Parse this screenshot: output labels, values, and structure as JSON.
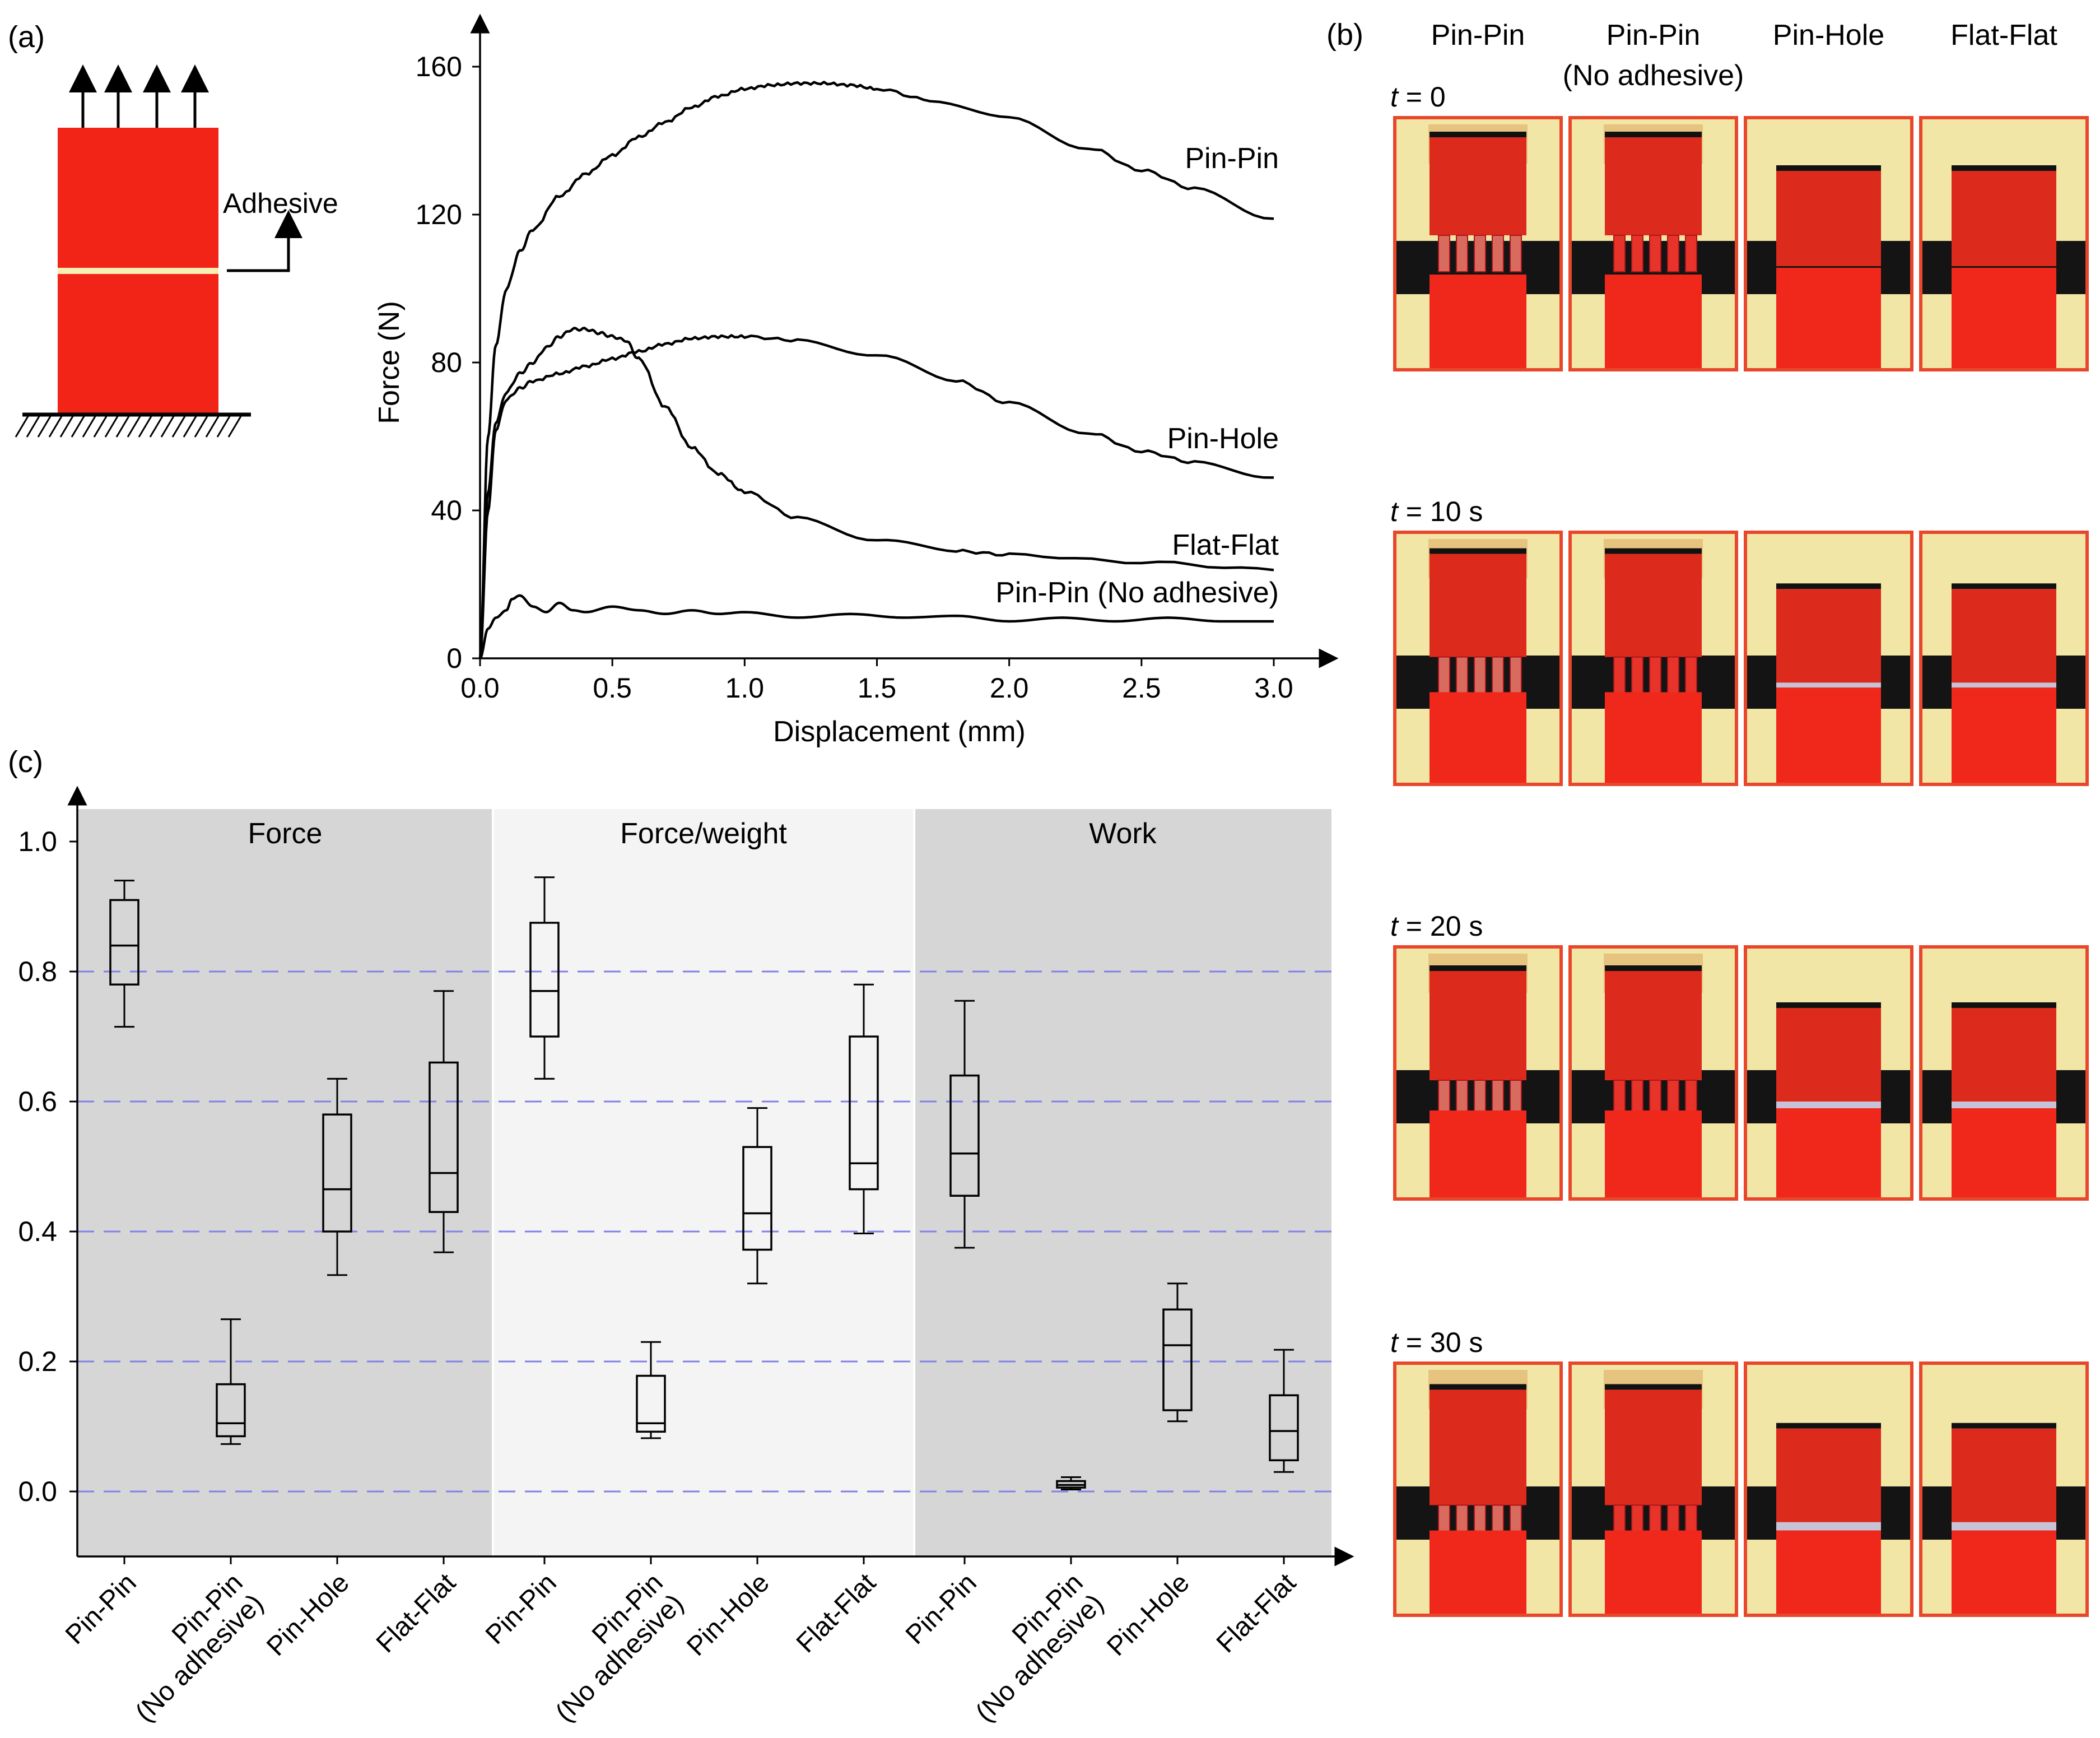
{
  "panel_labels": {
    "a": "(a)",
    "b": "(b)",
    "c": "(c)"
  },
  "schematic": {
    "adhesive_label": "Adhesive"
  },
  "colors": {
    "red": "#f22418",
    "adhesive": "#f7efb3",
    "grid": "#8080e6",
    "panel_dark": "#d6d6d6",
    "panel_light": "#f4f4f4",
    "frame": "#e8472c",
    "fixture": "#f2e6a6",
    "black_band": "#141414"
  },
  "photos": {
    "columns": [
      "Pin-Pin",
      "Pin-Pin\n(No adhesive)",
      "Pin-Hole",
      "Flat-Flat"
    ],
    "times": [
      {
        "t": "t",
        "rest": " = 0"
      },
      {
        "t": "t",
        "rest": " = 10 s"
      },
      {
        "t": "t",
        "rest": " = 20 s"
      },
      {
        "t": "t",
        "rest": " = 30 s"
      }
    ]
  },
  "chart_data": [
    {
      "type": "line",
      "panel": "(a)",
      "xlabel": "Displacement (mm)",
      "ylabel": "Force (N)",
      "xlim": [
        0,
        3.0
      ],
      "ylim": [
        0,
        160
      ],
      "xticks": [
        0,
        0.5,
        1.0,
        1.5,
        2.0,
        2.5,
        3.0
      ],
      "xtick_labels": [
        "0.0",
        "0.5",
        "1.0",
        "1.5",
        "2.0",
        "2.5",
        "3.0"
      ],
      "yticks": [
        0,
        40,
        80,
        120,
        160
      ],
      "ytick_labels": [
        "0",
        "40",
        "80",
        "120",
        "160"
      ],
      "series": [
        {
          "name": "Pin-Pin",
          "x": [
            0,
            0.03,
            0.06,
            0.1,
            0.15,
            0.2,
            0.3,
            0.4,
            0.5,
            0.6,
            0.7,
            0.8,
            0.9,
            1.0,
            1.1,
            1.2,
            1.3,
            1.4,
            1.5,
            1.7,
            2.0,
            2.3,
            2.5,
            2.7,
            3.0
          ],
          "y": [
            0,
            60,
            85,
            100,
            110,
            116,
            125,
            131,
            136,
            141,
            145,
            149,
            152,
            154,
            155,
            155.5,
            155.5,
            155,
            154,
            151,
            146,
            138,
            132,
            127,
            119
          ]
        },
        {
          "name": "Pin-Hole",
          "x": [
            0,
            0.03,
            0.06,
            0.1,
            0.15,
            0.2,
            0.3,
            0.4,
            0.5,
            0.6,
            0.7,
            0.8,
            0.9,
            1.0,
            1.2,
            1.5,
            1.8,
            2.0,
            2.3,
            2.5,
            2.7,
            3.0
          ],
          "y": [
            0,
            40,
            62,
            70,
            73,
            75,
            77,
            79,
            81,
            83,
            85,
            86.5,
            87,
            87,
            86,
            82,
            75,
            69,
            61,
            56,
            53,
            49
          ]
        },
        {
          "name": "Flat-Flat",
          "x": [
            0,
            0.03,
            0.06,
            0.1,
            0.15,
            0.2,
            0.25,
            0.3,
            0.35,
            0.4,
            0.45,
            0.5,
            0.55,
            0.6,
            0.7,
            0.8,
            0.9,
            1.0,
            1.2,
            1.5,
            1.8,
            2.0,
            2.5,
            3.0
          ],
          "y": [
            0,
            45,
            64,
            72,
            77,
            80,
            84,
            87,
            89,
            89,
            88,
            87,
            86,
            81,
            68,
            57,
            50,
            45,
            38,
            32,
            29,
            28,
            26,
            24
          ]
        },
        {
          "name": "Pin-Pin (No adhesive)",
          "x": [
            0,
            0.03,
            0.06,
            0.1,
            0.12,
            0.15,
            0.2,
            0.25,
            0.3,
            0.35,
            0.4,
            0.5,
            0.6,
            0.7,
            0.8,
            0.9,
            1.0,
            1.2,
            1.4,
            1.6,
            1.8,
            2.0,
            2.2,
            2.4,
            2.6,
            2.8,
            3.0
          ],
          "y": [
            0,
            8,
            11,
            13,
            16,
            17,
            14,
            12.5,
            15,
            13,
            12.5,
            14,
            13,
            12,
            13,
            12,
            12.5,
            11,
            12,
            11,
            11.5,
            10,
            11,
            10,
            11,
            10,
            10
          ]
        }
      ]
    },
    {
      "type": "box",
      "panel": "(c)",
      "ylim": [
        -0.1,
        1.05
      ],
      "yticks": [
        0.0,
        0.2,
        0.4,
        0.6,
        0.8,
        1.0
      ],
      "ytick_labels": [
        "0.0",
        "0.2",
        "0.4",
        "0.6",
        "0.8",
        "1.0"
      ],
      "groups": [
        {
          "name": "Force",
          "boxes": [
            {
              "label": "Pin-Pin",
              "min": 0.715,
              "q1": 0.78,
              "median": 0.84,
              "q3": 0.91,
              "max": 0.94
            },
            {
              "label": "Pin-Pin\n(No adhesive)",
              "min": 0.073,
              "q1": 0.085,
              "median": 0.105,
              "q3": 0.165,
              "max": 0.265
            },
            {
              "label": "Pin-Hole",
              "min": 0.333,
              "q1": 0.4,
              "median": 0.465,
              "q3": 0.58,
              "max": 0.635
            },
            {
              "label": "Flat-Flat",
              "min": 0.368,
              "q1": 0.43,
              "median": 0.49,
              "q3": 0.66,
              "max": 0.77
            }
          ]
        },
        {
          "name": "Force/weight",
          "boxes": [
            {
              "label": "Pin-Pin",
              "min": 0.635,
              "q1": 0.7,
              "median": 0.77,
              "q3": 0.875,
              "max": 0.945
            },
            {
              "label": "Pin-Pin\n(No adhesive)",
              "min": 0.082,
              "q1": 0.092,
              "median": 0.105,
              "q3": 0.178,
              "max": 0.23
            },
            {
              "label": "Pin-Hole",
              "min": 0.32,
              "q1": 0.372,
              "median": 0.428,
              "q3": 0.53,
              "max": 0.59
            },
            {
              "label": "Flat-Flat",
              "min": 0.397,
              "q1": 0.465,
              "median": 0.505,
              "q3": 0.7,
              "max": 0.78
            }
          ]
        },
        {
          "name": "Work",
          "boxes": [
            {
              "label": "Pin-Pin",
              "min": 0.375,
              "q1": 0.455,
              "median": 0.52,
              "q3": 0.64,
              "max": 0.755
            },
            {
              "label": "Pin-Pin\n(No adhesive)",
              "min": 0.003,
              "q1": 0.006,
              "median": 0.01,
              "q3": 0.016,
              "max": 0.022
            },
            {
              "label": "Pin-Hole",
              "min": 0.108,
              "q1": 0.125,
              "median": 0.225,
              "q3": 0.28,
              "max": 0.32
            },
            {
              "label": "Flat-Flat",
              "min": 0.03,
              "q1": 0.048,
              "median": 0.093,
              "q3": 0.148,
              "max": 0.218
            }
          ]
        }
      ]
    }
  ]
}
